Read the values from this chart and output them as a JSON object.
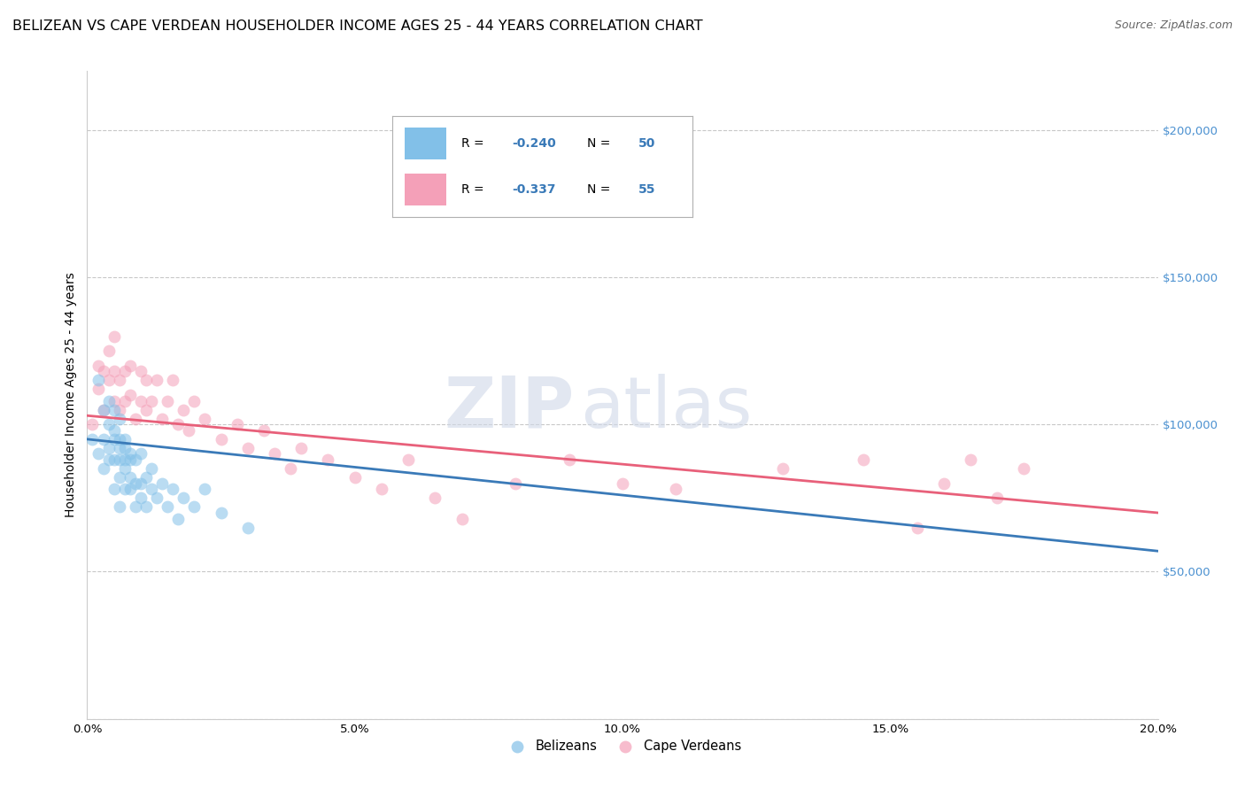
{
  "title": "BELIZEAN VS CAPE VERDEAN HOUSEHOLDER INCOME AGES 25 - 44 YEARS CORRELATION CHART",
  "source": "Source: ZipAtlas.com",
  "ylabel": "Householder Income Ages 25 - 44 years",
  "xlim": [
    0.0,
    0.2
  ],
  "ylim": [
    0,
    220000
  ],
  "yticks": [
    0,
    50000,
    100000,
    150000,
    200000
  ],
  "ytick_labels": [
    "",
    "$50,000",
    "$100,000",
    "$150,000",
    "$200,000"
  ],
  "xticks": [
    0.0,
    0.05,
    0.1,
    0.15,
    0.2
  ],
  "xtick_labels": [
    "0.0%",
    "5.0%",
    "10.0%",
    "15.0%",
    "20.0%"
  ],
  "watermark_zip": "ZIP",
  "watermark_atlas": "atlas",
  "legend_r1": "-0.240",
  "legend_n1": "50",
  "legend_r2": "-0.337",
  "legend_n2": "55",
  "color_blue": "#82c0e8",
  "color_pink": "#f4a0b8",
  "color_blue_line": "#3a7ab8",
  "color_pink_line": "#e8607a",
  "color_blue_text": "#3a7ab8",
  "color_ytick": "#4a90d0",
  "scatter_alpha": 0.55,
  "marker_size": 100,
  "belizean_x": [
    0.001,
    0.002,
    0.002,
    0.003,
    0.003,
    0.003,
    0.004,
    0.004,
    0.004,
    0.004,
    0.005,
    0.005,
    0.005,
    0.005,
    0.005,
    0.006,
    0.006,
    0.006,
    0.006,
    0.006,
    0.006,
    0.007,
    0.007,
    0.007,
    0.007,
    0.007,
    0.008,
    0.008,
    0.008,
    0.008,
    0.009,
    0.009,
    0.009,
    0.01,
    0.01,
    0.01,
    0.011,
    0.011,
    0.012,
    0.012,
    0.013,
    0.014,
    0.015,
    0.016,
    0.017,
    0.018,
    0.02,
    0.022,
    0.025,
    0.03
  ],
  "belizean_y": [
    95000,
    115000,
    90000,
    105000,
    85000,
    95000,
    100000,
    92000,
    108000,
    88000,
    95000,
    105000,
    88000,
    78000,
    98000,
    92000,
    82000,
    88000,
    95000,
    102000,
    72000,
    88000,
    95000,
    78000,
    85000,
    92000,
    82000,
    90000,
    78000,
    88000,
    80000,
    72000,
    88000,
    80000,
    90000,
    75000,
    82000,
    72000,
    78000,
    85000,
    75000,
    80000,
    72000,
    78000,
    68000,
    75000,
    72000,
    78000,
    70000,
    65000
  ],
  "capeverdean_x": [
    0.001,
    0.002,
    0.002,
    0.003,
    0.003,
    0.004,
    0.004,
    0.005,
    0.005,
    0.005,
    0.006,
    0.006,
    0.007,
    0.007,
    0.008,
    0.008,
    0.009,
    0.01,
    0.01,
    0.011,
    0.011,
    0.012,
    0.013,
    0.014,
    0.015,
    0.016,
    0.017,
    0.018,
    0.019,
    0.02,
    0.022,
    0.025,
    0.028,
    0.03,
    0.033,
    0.035,
    0.038,
    0.04,
    0.045,
    0.05,
    0.055,
    0.06,
    0.065,
    0.07,
    0.08,
    0.09,
    0.1,
    0.11,
    0.13,
    0.145,
    0.155,
    0.16,
    0.165,
    0.17,
    0.175
  ],
  "capeverdean_y": [
    100000,
    112000,
    120000,
    105000,
    118000,
    125000,
    115000,
    108000,
    118000,
    130000,
    105000,
    115000,
    108000,
    118000,
    110000,
    120000,
    102000,
    108000,
    118000,
    105000,
    115000,
    108000,
    115000,
    102000,
    108000,
    115000,
    100000,
    105000,
    98000,
    108000,
    102000,
    95000,
    100000,
    92000,
    98000,
    90000,
    85000,
    92000,
    88000,
    82000,
    78000,
    88000,
    75000,
    68000,
    80000,
    88000,
    80000,
    78000,
    85000,
    88000,
    65000,
    80000,
    88000,
    75000,
    85000
  ],
  "blue_line_x": [
    0.0,
    0.2
  ],
  "blue_line_y": [
    95000,
    57000
  ],
  "pink_line_x": [
    0.0,
    0.2
  ],
  "pink_line_y": [
    103000,
    70000
  ],
  "background_color": "#ffffff",
  "grid_color": "#c8c8c8",
  "title_fontsize": 11.5,
  "axis_label_fontsize": 10,
  "tick_label_fontsize": 9.5
}
